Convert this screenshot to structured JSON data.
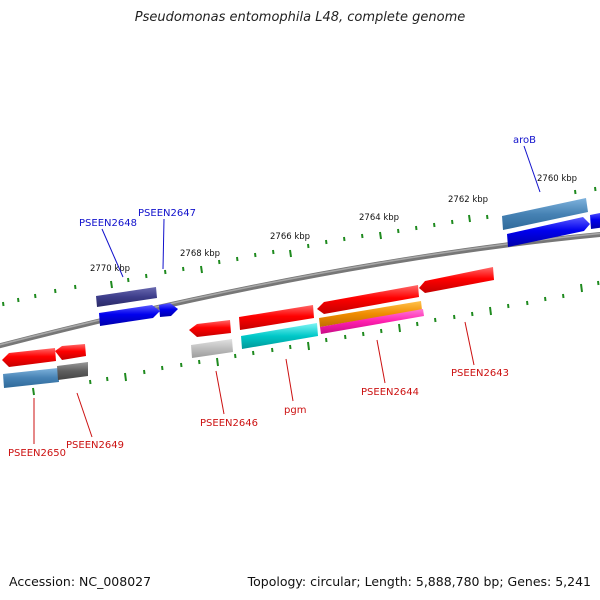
{
  "title": "Pseudomonas entomophila L48, complete genome",
  "footer": {
    "accession": "Accession: NC_008027",
    "info": "Topology: circular; Length: 5,888,780 bp; Genes: 5,241"
  },
  "colors": {
    "backbone": "#7f7f7f",
    "tick": "#1e8a1e",
    "label_blue": "#1111cc",
    "label_red": "#cc1111"
  },
  "scale_labels": [
    "2770 kbp",
    "2768 kbp",
    "2766 kbp",
    "2764 kbp",
    "2762 kbp",
    "2760 kbp"
  ],
  "gene_labels": {
    "above": [
      "PSEEN2648",
      "PSEEN2647",
      "aroB"
    ],
    "below": [
      "PSEEN2650",
      "PSEEN2649",
      "PSEEN2646",
      "pgm",
      "PSEEN2644",
      "PSEEN2643"
    ]
  }
}
